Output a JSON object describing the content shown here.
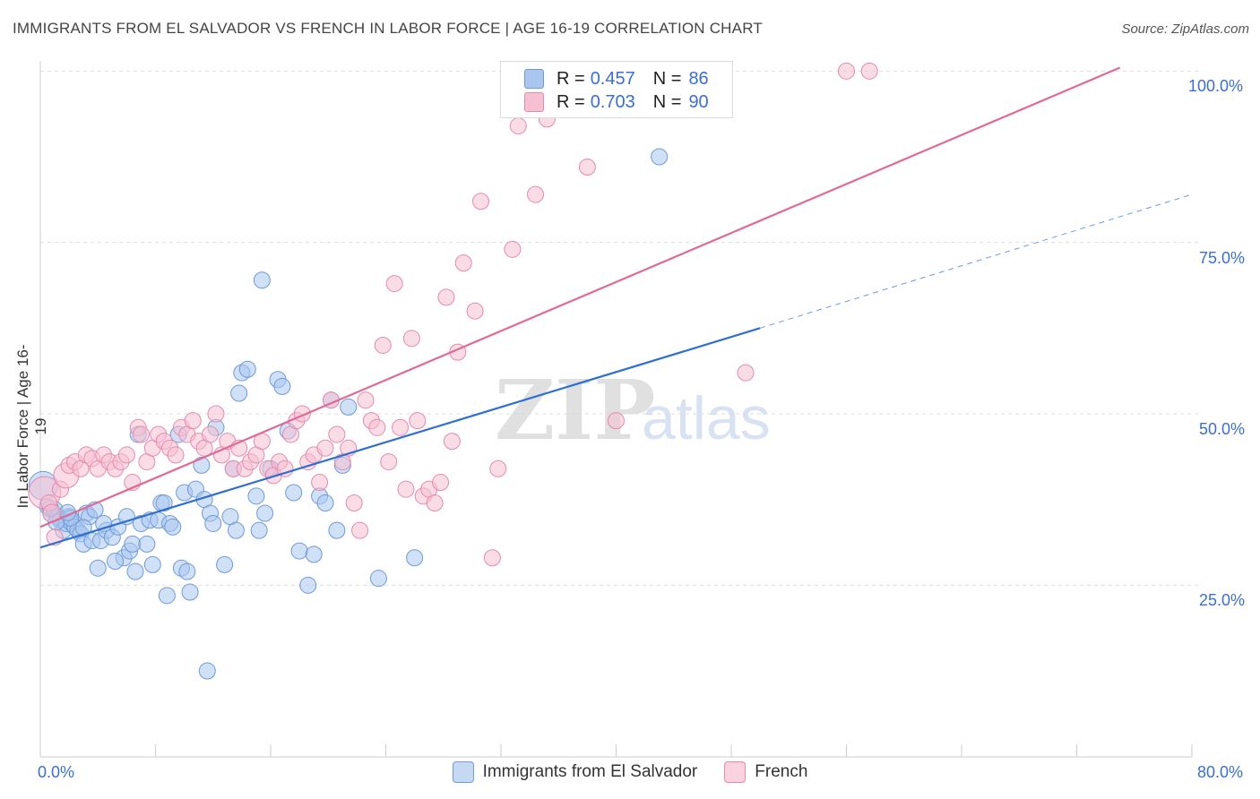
{
  "header": {
    "title": "IMMIGRANTS FROM EL SALVADOR VS FRENCH IN LABOR FORCE | AGE 16-19 CORRELATION CHART",
    "source": "Source: ZipAtlas.com"
  },
  "legend": {
    "r_label": "R =",
    "n_label": "N =",
    "series1_r": "0.457",
    "series1_n": "86",
    "series2_r": "0.703",
    "series2_n": "90"
  },
  "axes": {
    "ylabel": "In Labor Force | Age 16-19",
    "x_min_label": "0.0%",
    "x_max_label": "80.0%",
    "y_ticks": [
      "100.0%",
      "75.0%",
      "50.0%",
      "25.0%"
    ]
  },
  "watermark": {
    "zip": "ZIP",
    "atlas": "atlas"
  },
  "colors": {
    "blue_fill": "#aac6ee",
    "blue_stroke": "#6f9ad8",
    "blue_line": "#2f6fd1",
    "pink_fill": "#f6c0d2",
    "pink_stroke": "#e58aab",
    "pink_line": "#e06a95",
    "grid": "#dedede",
    "tick_text": "#3a6fd0"
  },
  "chart_data": {
    "type": "scatter",
    "xlim": [
      0,
      80
    ],
    "ylim": [
      0,
      102
    ],
    "grid": true,
    "legend_position": "top-center",
    "series": [
      {
        "name": "Immigrants from El Salvador",
        "r": 0.457,
        "n": 86,
        "trend": {
          "x0": 0,
          "y0": 30.5,
          "x1": 50,
          "y1": 62.5,
          "dashed_to_x": 80,
          "dashed_to_y": 82
        },
        "points": [
          [
            0.2,
            39.5
          ],
          [
            0.5,
            36.5
          ],
          [
            0.8,
            35.5
          ],
          [
            1.0,
            36
          ],
          [
            1.2,
            35
          ],
          [
            1.4,
            34.5
          ],
          [
            1.6,
            33
          ],
          [
            1.8,
            34
          ],
          [
            2.0,
            35
          ],
          [
            2.2,
            34
          ],
          [
            2.4,
            33.5
          ],
          [
            2.6,
            33
          ],
          [
            2.8,
            32.5
          ],
          [
            3.0,
            31
          ],
          [
            3.2,
            35.5
          ],
          [
            3.4,
            35
          ],
          [
            3.6,
            31.5
          ],
          [
            3.8,
            36
          ],
          [
            4.0,
            27.5
          ],
          [
            4.2,
            31.5
          ],
          [
            4.6,
            33
          ],
          [
            5.0,
            32
          ],
          [
            5.4,
            33.5
          ],
          [
            5.8,
            29
          ],
          [
            6.0,
            35
          ],
          [
            6.2,
            30
          ],
          [
            6.4,
            31
          ],
          [
            6.6,
            27
          ],
          [
            6.8,
            47
          ],
          [
            7.0,
            34
          ],
          [
            7.4,
            31
          ],
          [
            7.6,
            34.5
          ],
          [
            7.8,
            28
          ],
          [
            8.2,
            34.5
          ],
          [
            8.4,
            37
          ],
          [
            8.6,
            37
          ],
          [
            8.8,
            23.5
          ],
          [
            9.0,
            34
          ],
          [
            9.2,
            33.5
          ],
          [
            9.6,
            47
          ],
          [
            9.8,
            27.5
          ],
          [
            10.0,
            38.5
          ],
          [
            10.2,
            27
          ],
          [
            10.4,
            24
          ],
          [
            10.8,
            39
          ],
          [
            11.2,
            42.5
          ],
          [
            11.4,
            37.5
          ],
          [
            11.6,
            12.5
          ],
          [
            11.8,
            35.5
          ],
          [
            12.0,
            34
          ],
          [
            12.8,
            28
          ],
          [
            13.2,
            35
          ],
          [
            13.4,
            42
          ],
          [
            13.6,
            33
          ],
          [
            13.8,
            53
          ],
          [
            14.0,
            56
          ],
          [
            14.4,
            56.5
          ],
          [
            15.0,
            38
          ],
          [
            15.2,
            33
          ],
          [
            15.4,
            69.5
          ],
          [
            15.6,
            35.5
          ],
          [
            16.0,
            42
          ],
          [
            16.5,
            55
          ],
          [
            16.8,
            54
          ],
          [
            17.2,
            47.5
          ],
          [
            17.6,
            38.5
          ],
          [
            18.0,
            30
          ],
          [
            18.6,
            25
          ],
          [
            19.0,
            29.5
          ],
          [
            19.4,
            38
          ],
          [
            19.8,
            37
          ],
          [
            20.2,
            52
          ],
          [
            20.6,
            33
          ],
          [
            21.0,
            42.5
          ],
          [
            21.4,
            51
          ],
          [
            23.5,
            26
          ],
          [
            26.0,
            29
          ],
          [
            43.0,
            87.5
          ],
          [
            12.2,
            48
          ],
          [
            5.2,
            28.5
          ],
          [
            2.1,
            34.8
          ],
          [
            1.1,
            34.2
          ],
          [
            3.0,
            33.4
          ],
          [
            4.4,
            34.0
          ],
          [
            0.7,
            36.2
          ],
          [
            1.9,
            35.6
          ]
        ]
      },
      {
        "name": "French",
        "r": 0.703,
        "n": 90,
        "trend": {
          "x0": 0,
          "y0": 33.5,
          "x1": 75,
          "y1": 100.5
        },
        "points": [
          [
            0.3,
            38.5
          ],
          [
            0.6,
            37
          ],
          [
            0.8,
            35.5
          ],
          [
            1.0,
            32
          ],
          [
            1.4,
            39
          ],
          [
            1.8,
            41
          ],
          [
            2.0,
            42.5
          ],
          [
            2.4,
            43
          ],
          [
            2.8,
            42
          ],
          [
            3.2,
            44
          ],
          [
            3.6,
            43.5
          ],
          [
            4.0,
            42
          ],
          [
            4.4,
            44
          ],
          [
            4.8,
            43
          ],
          [
            5.2,
            42
          ],
          [
            5.6,
            43
          ],
          [
            6.0,
            44
          ],
          [
            6.4,
            40
          ],
          [
            6.8,
            48
          ],
          [
            7.0,
            47
          ],
          [
            7.4,
            43
          ],
          [
            7.8,
            45
          ],
          [
            8.2,
            47
          ],
          [
            8.6,
            46
          ],
          [
            9.0,
            45
          ],
          [
            9.4,
            44
          ],
          [
            9.8,
            48
          ],
          [
            10.2,
            47
          ],
          [
            10.6,
            49
          ],
          [
            11.0,
            46
          ],
          [
            11.4,
            45
          ],
          [
            11.8,
            47
          ],
          [
            12.2,
            50
          ],
          [
            12.6,
            44
          ],
          [
            13.0,
            46
          ],
          [
            13.4,
            42
          ],
          [
            13.8,
            45
          ],
          [
            14.2,
            42
          ],
          [
            14.6,
            43
          ],
          [
            15.0,
            44
          ],
          [
            15.4,
            46
          ],
          [
            15.8,
            42
          ],
          [
            16.2,
            41
          ],
          [
            16.6,
            43
          ],
          [
            17.0,
            42
          ],
          [
            17.4,
            47
          ],
          [
            17.8,
            49
          ],
          [
            18.2,
            50
          ],
          [
            18.6,
            43
          ],
          [
            19.0,
            44
          ],
          [
            19.4,
            40
          ],
          [
            19.8,
            45
          ],
          [
            20.2,
            52
          ],
          [
            20.6,
            47
          ],
          [
            21.0,
            43
          ],
          [
            21.4,
            45
          ],
          [
            21.8,
            37
          ],
          [
            22.2,
            33
          ],
          [
            22.6,
            52
          ],
          [
            23.0,
            49
          ],
          [
            23.4,
            48
          ],
          [
            23.8,
            60
          ],
          [
            24.2,
            43
          ],
          [
            24.6,
            69
          ],
          [
            25.0,
            48
          ],
          [
            25.4,
            39
          ],
          [
            25.8,
            61
          ],
          [
            26.2,
            49
          ],
          [
            26.6,
            38
          ],
          [
            27.0,
            39
          ],
          [
            27.4,
            37
          ],
          [
            27.8,
            40
          ],
          [
            28.2,
            67
          ],
          [
            28.6,
            46
          ],
          [
            29.0,
            59
          ],
          [
            29.4,
            72
          ],
          [
            30.2,
            65
          ],
          [
            30.6,
            81
          ],
          [
            31.4,
            29
          ],
          [
            31.8,
            42
          ],
          [
            32.8,
            74
          ],
          [
            33.2,
            92
          ],
          [
            34.4,
            82
          ],
          [
            35.2,
            93
          ],
          [
            37.0,
            95
          ],
          [
            38.0,
            86
          ],
          [
            40.0,
            49
          ],
          [
            49.0,
            56
          ],
          [
            56.0,
            100
          ],
          [
            57.6,
            100
          ]
        ]
      }
    ]
  }
}
